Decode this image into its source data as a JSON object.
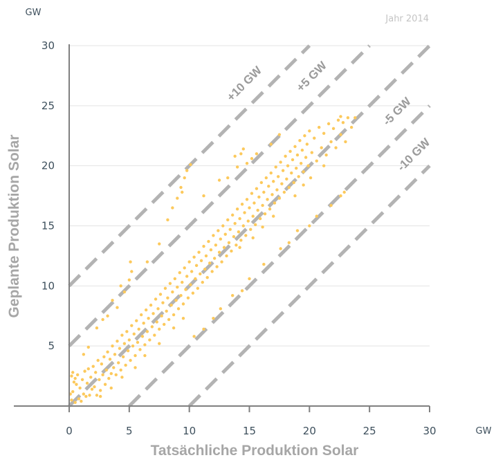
{
  "chart_data": {
    "type": "scatter",
    "title": "",
    "corner_label": "Jahr 2014",
    "xlabel": "Tatsächliche Produktion Solar",
    "ylabel": "Geplante Produktion Solar",
    "x_unit": "GW",
    "y_unit": "GW",
    "xlim": [
      0,
      30
    ],
    "ylim": [
      0,
      30
    ],
    "x_ticks": [
      "0",
      "5",
      "10",
      "15",
      "20",
      "25",
      "30"
    ],
    "y_ticks": [
      "5",
      "10",
      "15",
      "20",
      "25",
      "30"
    ],
    "grid": "horizontal",
    "point_color": "#fcc95c",
    "reference_line_color": "#b3b3b3",
    "reference_lines": [
      {
        "label": "+10 GW",
        "offset": 10
      },
      {
        "label": "+5 GW",
        "offset": 5
      },
      {
        "label": "-5 GW",
        "offset": -5
      },
      {
        "label": "-10 GW",
        "offset": -10
      }
    ],
    "points": [
      [
        0.2,
        0.5
      ],
      [
        0.3,
        1.2
      ],
      [
        0.4,
        2.0
      ],
      [
        0.5,
        0.3
      ],
      [
        0.6,
        1.8
      ],
      [
        0.7,
        2.6
      ],
      [
        0.8,
        0.6
      ],
      [
        0.9,
        1.5
      ],
      [
        1.0,
        0.4
      ],
      [
        1.1,
        2.2
      ],
      [
        1.2,
        1.0
      ],
      [
        1.3,
        2.9
      ],
      [
        1.4,
        0.8
      ],
      [
        1.5,
        1.9
      ],
      [
        1.6,
        3.1
      ],
      [
        1.7,
        0.9
      ],
      [
        1.8,
        2.4
      ],
      [
        1.9,
        1.4
      ],
      [
        2.0,
        3.3
      ],
      [
        2.1,
        1.6
      ],
      [
        2.2,
        2.8
      ],
      [
        2.3,
        0.9
      ],
      [
        2.4,
        3.8
      ],
      [
        2.5,
        2.2
      ],
      [
        2.6,
        1.3
      ],
      [
        2.7,
        3.5
      ],
      [
        2.8,
        2.6
      ],
      [
        2.9,
        4.1
      ],
      [
        3.0,
        1.8
      ],
      [
        3.1,
        3.0
      ],
      [
        3.2,
        4.5
      ],
      [
        3.3,
        2.3
      ],
      [
        3.4,
        3.9
      ],
      [
        3.5,
        2.7
      ],
      [
        3.6,
        5.0
      ],
      [
        3.7,
        3.2
      ],
      [
        3.8,
        4.3
      ],
      [
        3.9,
        2.6
      ],
      [
        4.0,
        5.4
      ],
      [
        4.1,
        3.6
      ],
      [
        4.2,
        4.8
      ],
      [
        4.3,
        3.0
      ],
      [
        4.4,
        5.9
      ],
      [
        4.5,
        4.1
      ],
      [
        4.6,
        5.2
      ],
      [
        4.7,
        3.4
      ],
      [
        4.8,
        6.2
      ],
      [
        4.9,
        4.6
      ],
      [
        5.0,
        5.5
      ],
      [
        5.1,
        3.8
      ],
      [
        5.2,
        6.7
      ],
      [
        5.3,
        5.0
      ],
      [
        5.4,
        6.0
      ],
      [
        5.5,
        4.2
      ],
      [
        5.6,
        7.1
      ],
      [
        5.7,
        5.3
      ],
      [
        5.8,
        6.4
      ],
      [
        5.9,
        4.7
      ],
      [
        6.0,
        7.6
      ],
      [
        6.1,
        5.8
      ],
      [
        6.2,
        6.9
      ],
      [
        6.3,
        5.1
      ],
      [
        6.4,
        8.0
      ],
      [
        6.5,
        6.2
      ],
      [
        6.6,
        7.3
      ],
      [
        6.7,
        5.5
      ],
      [
        6.8,
        8.4
      ],
      [
        6.9,
        6.6
      ],
      [
        7.0,
        7.7
      ],
      [
        7.1,
        5.9
      ],
      [
        7.2,
        8.9
      ],
      [
        7.3,
        7.0
      ],
      [
        7.4,
        8.1
      ],
      [
        7.5,
        6.4
      ],
      [
        7.6,
        9.3
      ],
      [
        7.7,
        7.5
      ],
      [
        7.8,
        8.6
      ],
      [
        7.9,
        6.8
      ],
      [
        8.0,
        9.8
      ],
      [
        8.1,
        7.9
      ],
      [
        8.2,
        9.0
      ],
      [
        8.3,
        7.2
      ],
      [
        8.4,
        10.2
      ],
      [
        8.5,
        8.4
      ],
      [
        8.6,
        9.5
      ],
      [
        8.7,
        7.6
      ],
      [
        8.8,
        10.6
      ],
      [
        8.9,
        8.8
      ],
      [
        9.0,
        9.9
      ],
      [
        9.1,
        8.1
      ],
      [
        9.2,
        11.1
      ],
      [
        9.3,
        9.2
      ],
      [
        9.4,
        10.3
      ],
      [
        9.5,
        8.5
      ],
      [
        9.6,
        11.5
      ],
      [
        9.7,
        9.7
      ],
      [
        9.8,
        10.8
      ],
      [
        9.9,
        9.0
      ],
      [
        10.0,
        12.0
      ],
      [
        10.1,
        10.1
      ],
      [
        10.2,
        11.2
      ],
      [
        10.3,
        9.4
      ],
      [
        10.4,
        12.4
      ],
      [
        10.5,
        10.6
      ],
      [
        10.6,
        11.7
      ],
      [
        10.7,
        9.8
      ],
      [
        10.8,
        12.8
      ],
      [
        10.9,
        11.0
      ],
      [
        11.0,
        12.1
      ],
      [
        11.1,
        10.3
      ],
      [
        11.2,
        13.3
      ],
      [
        11.3,
        11.4
      ],
      [
        11.4,
        12.5
      ],
      [
        11.5,
        10.7
      ],
      [
        11.6,
        13.7
      ],
      [
        11.7,
        11.9
      ],
      [
        11.8,
        13.0
      ],
      [
        11.9,
        11.2
      ],
      [
        12.0,
        14.2
      ],
      [
        12.1,
        12.3
      ],
      [
        12.2,
        13.4
      ],
      [
        12.3,
        11.6
      ],
      [
        12.4,
        14.6
      ],
      [
        12.5,
        12.8
      ],
      [
        12.6,
        13.9
      ],
      [
        12.7,
        12.0
      ],
      [
        12.8,
        15.0
      ],
      [
        12.9,
        13.2
      ],
      [
        13.0,
        14.3
      ],
      [
        13.1,
        12.5
      ],
      [
        13.2,
        15.5
      ],
      [
        13.3,
        13.6
      ],
      [
        13.4,
        14.7
      ],
      [
        13.5,
        12.9
      ],
      [
        13.6,
        15.9
      ],
      [
        13.7,
        14.1
      ],
      [
        13.8,
        15.2
      ],
      [
        13.9,
        13.4
      ],
      [
        14.0,
        16.4
      ],
      [
        14.1,
        14.5
      ],
      [
        14.2,
        15.6
      ],
      [
        14.3,
        13.8
      ],
      [
        14.4,
        16.8
      ],
      [
        14.5,
        15.0
      ],
      [
        14.6,
        16.1
      ],
      [
        14.7,
        14.2
      ],
      [
        14.8,
        17.2
      ],
      [
        14.9,
        15.4
      ],
      [
        15.0,
        16.5
      ],
      [
        15.1,
        14.7
      ],
      [
        15.2,
        17.7
      ],
      [
        15.3,
        15.8
      ],
      [
        15.4,
        16.9
      ],
      [
        15.5,
        15.1
      ],
      [
        15.6,
        18.1
      ],
      [
        15.7,
        16.3
      ],
      [
        15.8,
        17.4
      ],
      [
        15.9,
        15.6
      ],
      [
        16.0,
        18.6
      ],
      [
        16.1,
        16.7
      ],
      [
        16.2,
        17.8
      ],
      [
        16.3,
        16.0
      ],
      [
        16.4,
        19.0
      ],
      [
        16.5,
        17.2
      ],
      [
        16.6,
        18.3
      ],
      [
        16.7,
        16.4
      ],
      [
        16.8,
        19.4
      ],
      [
        16.9,
        17.6
      ],
      [
        17.0,
        18.7
      ],
      [
        17.1,
        16.9
      ],
      [
        17.2,
        19.9
      ],
      [
        17.3,
        18.0
      ],
      [
        17.4,
        19.1
      ],
      [
        17.5,
        17.3
      ],
      [
        17.6,
        20.3
      ],
      [
        17.7,
        18.5
      ],
      [
        17.8,
        19.6
      ],
      [
        17.9,
        17.8
      ],
      [
        18.0,
        20.8
      ],
      [
        18.1,
        18.9
      ],
      [
        18.2,
        20.0
      ],
      [
        18.3,
        18.2
      ],
      [
        18.4,
        21.2
      ],
      [
        18.5,
        19.4
      ],
      [
        18.6,
        20.5
      ],
      [
        18.7,
        18.6
      ],
      [
        18.8,
        21.6
      ],
      [
        18.9,
        19.8
      ],
      [
        19.0,
        20.9
      ],
      [
        19.1,
        19.1
      ],
      [
        19.2,
        22.1
      ],
      [
        19.3,
        20.2
      ],
      [
        19.4,
        21.3
      ],
      [
        19.5,
        19.5
      ],
      [
        19.6,
        22.5
      ],
      [
        19.7,
        20.7
      ],
      [
        19.8,
        21.8
      ],
      [
        19.9,
        20.0
      ],
      [
        20.0,
        22.9
      ],
      [
        20.2,
        21.1
      ],
      [
        20.4,
        22.3
      ],
      [
        20.6,
        20.4
      ],
      [
        20.8,
        23.2
      ],
      [
        21.0,
        21.5
      ],
      [
        21.2,
        22.7
      ],
      [
        21.4,
        20.9
      ],
      [
        21.6,
        23.5
      ],
      [
        21.8,
        22.0
      ],
      [
        22.0,
        23.1
      ],
      [
        22.2,
        21.5
      ],
      [
        22.4,
        23.8
      ],
      [
        22.6,
        22.6
      ],
      [
        22.8,
        23.6
      ],
      [
        23.0,
        22.0
      ],
      [
        23.2,
        24.0
      ],
      [
        23.5,
        23.2
      ],
      [
        3.2,
        7.5
      ],
      [
        4.0,
        8.2
      ],
      [
        4.6,
        9.5
      ],
      [
        5.0,
        10.5
      ],
      [
        5.2,
        11.2
      ],
      [
        5.1,
        12.0
      ],
      [
        3.6,
        8.8
      ],
      [
        4.3,
        10.0
      ],
      [
        8.6,
        16.5
      ],
      [
        9.0,
        17.3
      ],
      [
        9.3,
        18.2
      ],
      [
        9.6,
        19.0
      ],
      [
        9.8,
        19.6
      ],
      [
        10.1,
        20.1
      ],
      [
        8.2,
        15.5
      ],
      [
        9.4,
        17.8
      ],
      [
        13.8,
        20.8
      ],
      [
        14.3,
        21.0
      ],
      [
        14.5,
        21.4
      ],
      [
        15.2,
        20.6
      ],
      [
        14.0,
        19.9
      ],
      [
        15.6,
        21.0
      ],
      [
        13.2,
        19.0
      ],
      [
        14.8,
        20.2
      ],
      [
        2.3,
        6.5
      ],
      [
        2.8,
        7.2
      ],
      [
        6.5,
        12.0
      ],
      [
        7.5,
        13.5
      ],
      [
        11.2,
        17.5
      ],
      [
        12.5,
        18.8
      ],
      [
        16.8,
        21.8
      ],
      [
        17.5,
        22.6
      ],
      [
        10.4,
        5.8
      ],
      [
        11.2,
        6.4
      ],
      [
        12.6,
        8.1
      ],
      [
        13.6,
        9.2
      ],
      [
        15.0,
        10.6
      ],
      [
        16.2,
        11.8
      ],
      [
        17.6,
        13.1
      ],
      [
        19.0,
        14.6
      ],
      [
        20.6,
        15.8
      ],
      [
        21.8,
        16.7
      ],
      [
        22.6,
        17.5
      ],
      [
        22.9,
        17.8
      ],
      [
        18.3,
        13.6
      ],
      [
        20.0,
        15.0
      ],
      [
        14.4,
        9.6
      ],
      [
        12.0,
        7.3
      ],
      [
        0.2,
        2.5
      ],
      [
        0.3,
        2.8
      ],
      [
        0.5,
        2.3
      ],
      [
        0.1,
        1.0
      ],
      [
        1.2,
        4.3
      ],
      [
        1.6,
        4.9
      ],
      [
        6.3,
        4.2
      ],
      [
        7.5,
        5.2
      ],
      [
        8.7,
        6.5
      ],
      [
        9.5,
        7.3
      ],
      [
        4.4,
        2.4
      ],
      [
        3.5,
        1.5
      ],
      [
        2.6,
        0.8
      ],
      [
        5.5,
        3.2
      ],
      [
        22.6,
        24.1
      ],
      [
        23.8,
        24.0
      ],
      [
        21.2,
        20.0
      ],
      [
        20.1,
        19.0
      ],
      [
        19.5,
        18.4
      ],
      [
        18.8,
        17.5
      ],
      [
        17.0,
        15.8
      ],
      [
        16.1,
        14.9
      ],
      [
        15.3,
        14.0
      ],
      [
        14.2,
        13.2
      ]
    ]
  }
}
